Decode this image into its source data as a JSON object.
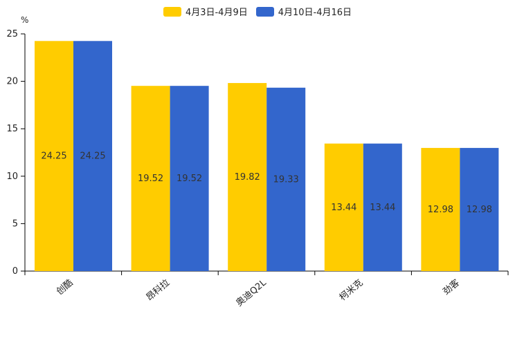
{
  "chart_data": {
    "type": "bar",
    "title": "",
    "ylabel_unit": "%",
    "xlabel": "",
    "categories": [
      "创酷",
      "昂科拉",
      "奥迪Q2L",
      "柯米克",
      "劲客"
    ],
    "series": [
      {
        "name": "4月3日-4月9日",
        "color": "#ffcc00",
        "values": [
          24.25,
          19.52,
          19.82,
          13.44,
          12.98
        ]
      },
      {
        "name": "4月10日-4月16日",
        "color": "#3366cc",
        "values": [
          24.25,
          19.52,
          19.33,
          13.44,
          12.98
        ]
      }
    ],
    "ylim": [
      0,
      25
    ],
    "yticks": [
      0,
      5,
      10,
      15,
      20,
      25
    ],
    "legend_position": "top-center",
    "grid": false
  }
}
